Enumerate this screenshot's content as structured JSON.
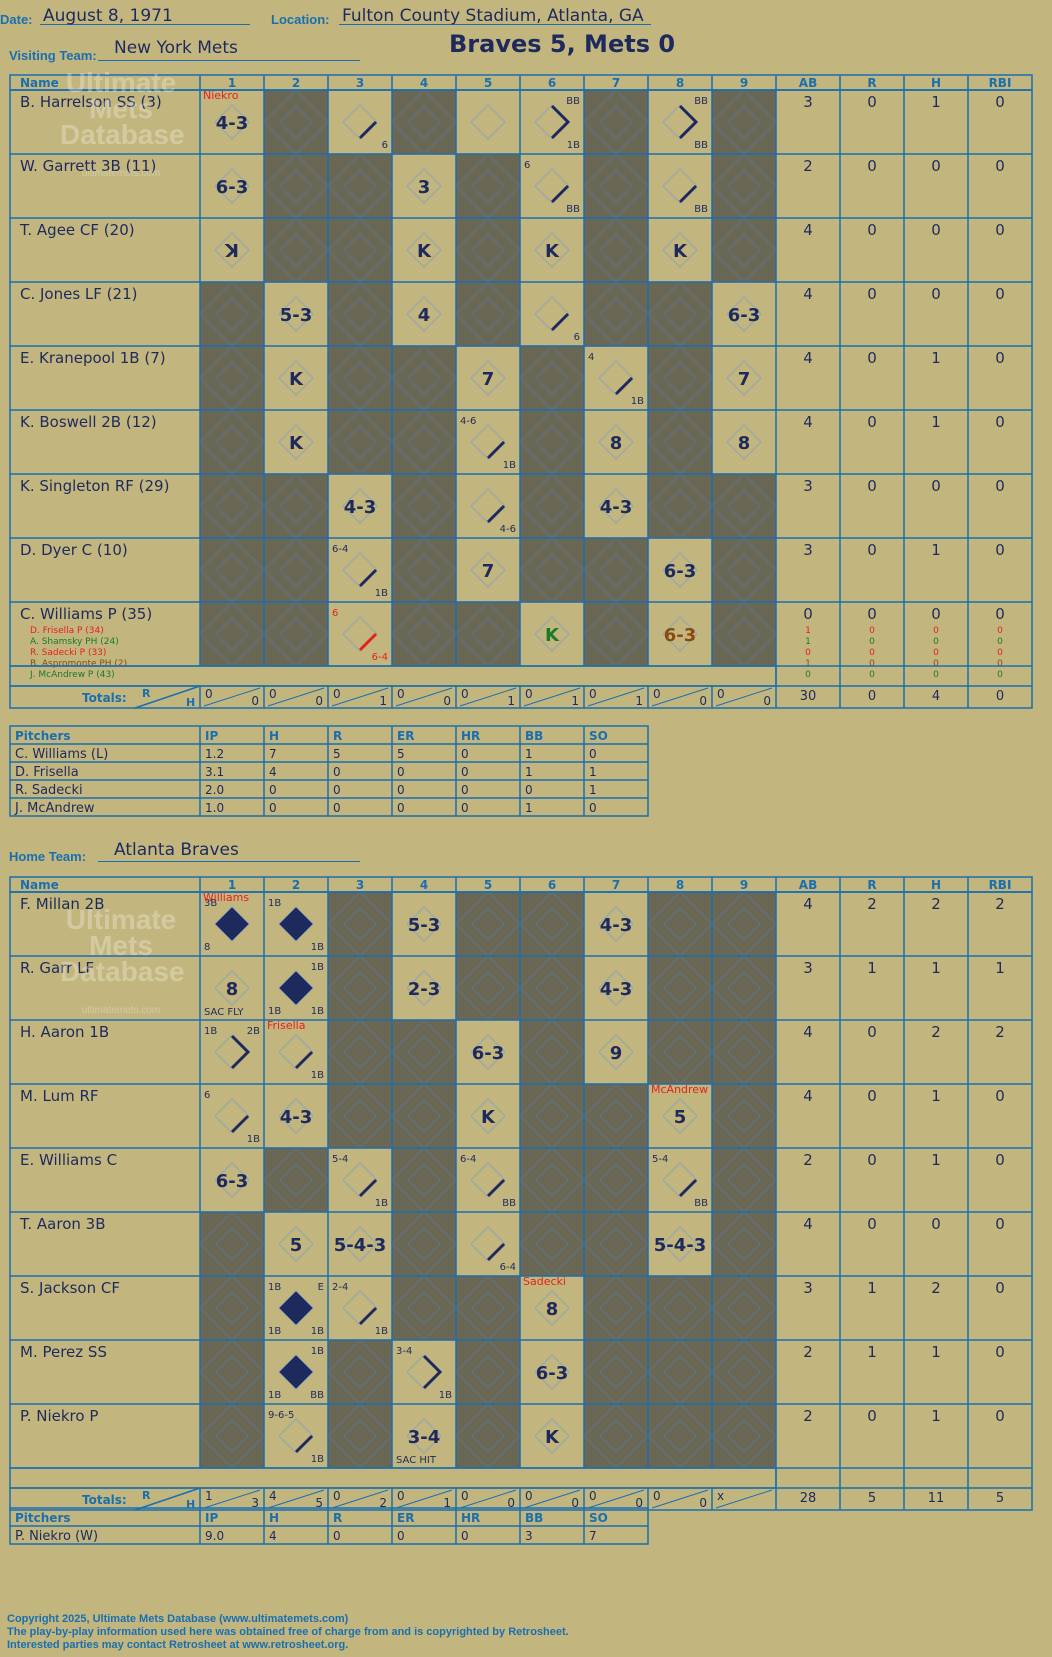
{
  "header": {
    "date_label": "Date:",
    "date": "August 8, 1971",
    "location_label": "Location:",
    "location": "Fulton County Stadium, Atlanta, GA",
    "visiting_label": "Visiting Team:",
    "visiting_team": "New York Mets",
    "title": "Braves 5, Mets 0",
    "home_label": "Home Team:",
    "home_team": "Atlanta Braves"
  },
  "watermark": {
    "line1": "Ultimate",
    "line2": "Mets",
    "line3": "Database",
    "url": "ultimatemets.com"
  },
  "grid_headers": {
    "name": "Name",
    "innings": [
      "1",
      "2",
      "3",
      "4",
      "5",
      "6",
      "7",
      "8",
      "9"
    ],
    "stats": [
      "AB",
      "R",
      "H",
      "RBI"
    ],
    "totals": "Totals:",
    "r": "R",
    "h": "H"
  },
  "colors": {
    "background": "#c2b67e",
    "shade": "#6b6755",
    "line": "#1a6fb0",
    "ink": "#1e2a5e",
    "red": "#e8201c",
    "green": "#1a7a2a",
    "brown": "#8a4a10"
  },
  "visitors": {
    "rows": [
      {
        "name": "B. Harrelson SS (3)",
        "shaded": [
          2,
          4,
          7,
          9
        ],
        "stats": [
          "3",
          "0",
          "1",
          "0"
        ],
        "cells": [
          {
            "inn": 1,
            "dia": "out",
            "center": "4-3",
            "topnote": "Niekro",
            "topnote_color": "red"
          },
          {
            "inn": 3,
            "dia": "1b",
            "br": "6"
          },
          {
            "inn": 6,
            "dia": "walk",
            "tr": "BB",
            "br": "1B"
          },
          {
            "inn": 8,
            "dia": "walk",
            "tr": "BB",
            "br": "BB"
          }
        ]
      },
      {
        "name": "W. Garrett 3B (11)",
        "shaded": [
          2,
          3,
          5,
          7,
          9
        ],
        "stats": [
          "2",
          "0",
          "0",
          "0"
        ],
        "cells": [
          {
            "inn": 1,
            "dia": "out",
            "center": "6-3"
          },
          {
            "inn": 4,
            "dia": "out",
            "center": "3"
          },
          {
            "inn": 6,
            "dia": "1b",
            "tl": "6",
            "br": "BB"
          },
          {
            "inn": 8,
            "dia": "1b",
            "br": "BB"
          }
        ]
      },
      {
        "name": "T. Agee CF (20)",
        "shaded": [
          2,
          3,
          5,
          7,
          9
        ],
        "stats": [
          "4",
          "0",
          "0",
          "0"
        ],
        "cells": [
          {
            "inn": 1,
            "dia": "out",
            "center": "ꓘ"
          },
          {
            "inn": 4,
            "dia": "out",
            "center": "K"
          },
          {
            "inn": 6,
            "dia": "out",
            "center": "K"
          },
          {
            "inn": 8,
            "dia": "out",
            "center": "K"
          }
        ]
      },
      {
        "name": "C. Jones LF (21)",
        "shaded": [
          1,
          3,
          5,
          7,
          8
        ],
        "stats": [
          "4",
          "0",
          "0",
          "0"
        ],
        "cells": [
          {
            "inn": 2,
            "dia": "out",
            "center": "5-3"
          },
          {
            "inn": 4,
            "dia": "out",
            "center": "4"
          },
          {
            "inn": 6,
            "dia": "1b",
            "br": "6"
          },
          {
            "inn": 9,
            "dia": "out",
            "center": "6-3"
          }
        ]
      },
      {
        "name": "E. Kranepool 1B (7)",
        "shaded": [
          1,
          3,
          4,
          6,
          8
        ],
        "stats": [
          "4",
          "0",
          "1",
          "0"
        ],
        "cells": [
          {
            "inn": 2,
            "dia": "out",
            "center": "K"
          },
          {
            "inn": 5,
            "dia": "out",
            "center": "7"
          },
          {
            "inn": 7,
            "dia": "1b",
            "tl": "4",
            "br": "1B"
          },
          {
            "inn": 9,
            "dia": "out",
            "center": "7"
          }
        ]
      },
      {
        "name": "K. Boswell 2B (12)",
        "shaded": [
          1,
          3,
          4,
          6,
          8
        ],
        "stats": [
          "4",
          "0",
          "1",
          "0"
        ],
        "cells": [
          {
            "inn": 2,
            "dia": "out",
            "center": "K"
          },
          {
            "inn": 5,
            "dia": "1b",
            "tl": "4-6",
            "br": "1B"
          },
          {
            "inn": 7,
            "dia": "out",
            "center": "8"
          },
          {
            "inn": 9,
            "dia": "out",
            "center": "8"
          }
        ]
      },
      {
        "name": "K. Singleton RF (29)",
        "shaded": [
          1,
          2,
          4,
          6,
          8,
          9
        ],
        "stats": [
          "3",
          "0",
          "0",
          "0"
        ],
        "cells": [
          {
            "inn": 3,
            "dia": "out",
            "center": "4-3"
          },
          {
            "inn": 5,
            "dia": "1b",
            "br": "4-6"
          },
          {
            "inn": 7,
            "dia": "out",
            "center": "4-3"
          }
        ]
      },
      {
        "name": "D. Dyer C (10)",
        "shaded": [
          1,
          2,
          4,
          6,
          7,
          9
        ],
        "stats": [
          "3",
          "0",
          "1",
          "0"
        ],
        "cells": [
          {
            "inn": 3,
            "dia": "1b",
            "tl": "6-4",
            "br": "1B"
          },
          {
            "inn": 5,
            "dia": "out",
            "center": "7"
          },
          {
            "inn": 8,
            "dia": "out",
            "center": "6-3"
          }
        ]
      },
      {
        "name": "C. Williams P (35)",
        "shaded": [
          1,
          2,
          4,
          5,
          7,
          9
        ],
        "stats": [
          "0",
          "0",
          "0",
          "0"
        ],
        "cells": [
          {
            "inn": 3,
            "dia": "1b",
            "tl": "6",
            "br": "6-4",
            "color": "red"
          },
          {
            "inn": 6,
            "dia": "out",
            "center": "K",
            "color": "green"
          },
          {
            "inn": 8,
            "dia": "out",
            "center": "6-3",
            "color": "brown"
          }
        ],
        "subs": [
          {
            "name": "D. Frisella P (34)",
            "color": "red",
            "stats": [
              "1",
              "0",
              "0",
              "0"
            ]
          },
          {
            "name": "A. Shamsky PH (24)",
            "color": "green",
            "stats": [
              "1",
              "0",
              "0",
              "0"
            ]
          },
          {
            "name": "R. Sadecki P (33)",
            "color": "red",
            "stats": [
              "0",
              "0",
              "0",
              "0"
            ]
          },
          {
            "name": "B. Aspromonte PH (2)",
            "color": "brown",
            "stats": [
              "1",
              "0",
              "0",
              "0"
            ]
          },
          {
            "name": "J. McAndrew P (43)",
            "color": "green",
            "stats": [
              "0",
              "0",
              "0",
              "0"
            ]
          }
        ]
      }
    ],
    "totals": {
      "innings": [
        [
          "0",
          "0"
        ],
        [
          "0",
          "0"
        ],
        [
          "0",
          "1"
        ],
        [
          "0",
          "0"
        ],
        [
          "0",
          "1"
        ],
        [
          "0",
          "1"
        ],
        [
          "0",
          "1"
        ],
        [
          "0",
          "0"
        ],
        [
          "0",
          "0"
        ]
      ],
      "stats": [
        "30",
        "0",
        "4",
        "0"
      ]
    },
    "pitchers": {
      "header": [
        "Pitchers",
        "IP",
        "H",
        "R",
        "ER",
        "HR",
        "BB",
        "SO"
      ],
      "rows": [
        [
          "C. Williams (L)",
          "1.2",
          "7",
          "5",
          "5",
          "0",
          "1",
          "0"
        ],
        [
          "D. Frisella",
          "3.1",
          "4",
          "0",
          "0",
          "0",
          "1",
          "1"
        ],
        [
          "R. Sadecki",
          "2.0",
          "0",
          "0",
          "0",
          "0",
          "0",
          "1"
        ],
        [
          "J. McAndrew",
          "1.0",
          "0",
          "0",
          "0",
          "0",
          "1",
          "0"
        ]
      ]
    }
  },
  "home": {
    "rows": [
      {
        "name": "F. Millan 2B",
        "shaded": [
          3,
          5,
          6,
          8,
          9
        ],
        "stats": [
          "4",
          "2",
          "2",
          "2"
        ],
        "cells": [
          {
            "inn": 1,
            "dia": "run",
            "tl": "3B",
            "bl": "8",
            "topnote": "Williams",
            "topnote_color": "red"
          },
          {
            "inn": 2,
            "dia": "run",
            "tl": "1B",
            "br": "1B"
          },
          {
            "inn": 4,
            "dia": "out",
            "center": "5-3"
          },
          {
            "inn": 7,
            "dia": "out",
            "center": "4-3"
          }
        ]
      },
      {
        "name": "R. Garr LF",
        "shaded": [
          3,
          5,
          6,
          8,
          9
        ],
        "stats": [
          "3",
          "1",
          "1",
          "1"
        ],
        "cells": [
          {
            "inn": 1,
            "dia": "out",
            "center": "8",
            "bottom": "SAC FLY"
          },
          {
            "inn": 2,
            "dia": "run",
            "tr": "1B",
            "bl": "1B",
            "br": "1B"
          },
          {
            "inn": 4,
            "dia": "out",
            "center": "2-3"
          },
          {
            "inn": 7,
            "dia": "out",
            "center": "4-3"
          }
        ]
      },
      {
        "name": "H. Aaron 1B",
        "shaded": [
          3,
          4,
          6,
          8,
          9
        ],
        "stats": [
          "4",
          "0",
          "2",
          "2"
        ],
        "cells": [
          {
            "inn": 1,
            "dia": "double",
            "tl": "1B",
            "tr": "2B"
          },
          {
            "inn": 2,
            "dia": "1b",
            "br": "1B",
            "topnote": "Frisella",
            "topnote_color": "red"
          },
          {
            "inn": 5,
            "dia": "out",
            "center": "6-3"
          },
          {
            "inn": 7,
            "dia": "out",
            "center": "9"
          }
        ]
      },
      {
        "name": "M. Lum RF",
        "shaded": [
          3,
          4,
          6,
          7,
          9
        ],
        "stats": [
          "4",
          "0",
          "1",
          "0"
        ],
        "cells": [
          {
            "inn": 1,
            "dia": "1b",
            "tl": "6",
            "br": "1B"
          },
          {
            "inn": 2,
            "dia": "out",
            "center": "4-3"
          },
          {
            "inn": 5,
            "dia": "out",
            "center": "K"
          },
          {
            "inn": 8,
            "dia": "out",
            "center": "5",
            "topnote": "McAndrew",
            "topnote_color": "red"
          }
        ]
      },
      {
        "name": "E. Williams C",
        "shaded": [
          2,
          4,
          6,
          7,
          9
        ],
        "stats": [
          "2",
          "0",
          "1",
          "0"
        ],
        "cells": [
          {
            "inn": 1,
            "dia": "out",
            "center": "6-3"
          },
          {
            "inn": 3,
            "dia": "1b",
            "tl": "5-4",
            "br": "1B"
          },
          {
            "inn": 5,
            "dia": "1b",
            "tl": "6-4",
            "br": "BB"
          },
          {
            "inn": 8,
            "dia": "1b",
            "tl": "5-4",
            "br": "BB"
          }
        ]
      },
      {
        "name": "T. Aaron 3B",
        "shaded": [
          1,
          4,
          6,
          7,
          9
        ],
        "stats": [
          "4",
          "0",
          "0",
          "0"
        ],
        "cells": [
          {
            "inn": 2,
            "dia": "out",
            "center": "5"
          },
          {
            "inn": 3,
            "dia": "out",
            "center": "5-4-3"
          },
          {
            "inn": 5,
            "dia": "1b",
            "br": "6-4"
          },
          {
            "inn": 8,
            "dia": "out",
            "center": "5-4-3"
          }
        ]
      },
      {
        "name": "S. Jackson CF",
        "shaded": [
          1,
          4,
          5,
          7,
          8,
          9
        ],
        "stats": [
          "3",
          "1",
          "2",
          "0"
        ],
        "cells": [
          {
            "inn": 2,
            "dia": "run",
            "tl": "1B",
            "tr": "E",
            "bl": "1B",
            "br": "1B"
          },
          {
            "inn": 3,
            "dia": "1b",
            "tl": "2-4",
            "br": "1B"
          },
          {
            "inn": 6,
            "dia": "out",
            "center": "8",
            "topnote": "Sadecki",
            "topnote_color": "red"
          }
        ]
      },
      {
        "name": "M. Perez SS",
        "shaded": [
          1,
          3,
          5,
          7,
          8,
          9
        ],
        "stats": [
          "2",
          "1",
          "1",
          "0"
        ],
        "cells": [
          {
            "inn": 2,
            "dia": "run",
            "tr": "1B",
            "bl": "1B",
            "br": "BB"
          },
          {
            "inn": 4,
            "dia": "double",
            "tl": "3-4",
            "br": "1B"
          },
          {
            "inn": 6,
            "dia": "out",
            "center": "6-3"
          }
        ]
      },
      {
        "name": "P. Niekro P",
        "shaded": [
          1,
          3,
          5,
          7,
          8,
          9
        ],
        "stats": [
          "2",
          "0",
          "1",
          "0"
        ],
        "cells": [
          {
            "inn": 2,
            "dia": "1b",
            "tl": "9-6-5",
            "br": "1B"
          },
          {
            "inn": 4,
            "dia": "out",
            "center": "3-4",
            "bottom": "SAC HIT"
          },
          {
            "inn": 6,
            "dia": "out",
            "center": "K"
          }
        ]
      }
    ],
    "totals": {
      "innings": [
        [
          "1",
          "3"
        ],
        [
          "4",
          "5"
        ],
        [
          "0",
          "2"
        ],
        [
          "0",
          "1"
        ],
        [
          "0",
          "0"
        ],
        [
          "0",
          "0"
        ],
        [
          "0",
          "0"
        ],
        [
          "0",
          "0"
        ],
        [
          "x",
          ""
        ]
      ],
      "stats": [
        "28",
        "5",
        "11",
        "5"
      ]
    },
    "pitchers": {
      "header": [
        "Pitchers",
        "IP",
        "H",
        "R",
        "ER",
        "HR",
        "BB",
        "SO"
      ],
      "rows": [
        [
          "P. Niekro (W)",
          "9.0",
          "4",
          "0",
          "0",
          "0",
          "3",
          "7"
        ]
      ]
    }
  },
  "footer": {
    "line1": "Copyright 2025, Ultimate Mets Database (www.ultimatemets.com)",
    "line2": "The play-by-play information used here was obtained free of charge from and is copyrighted by Retrosheet.",
    "line3": "Interested parties may contact Retrosheet at www.retrosheet.org."
  }
}
